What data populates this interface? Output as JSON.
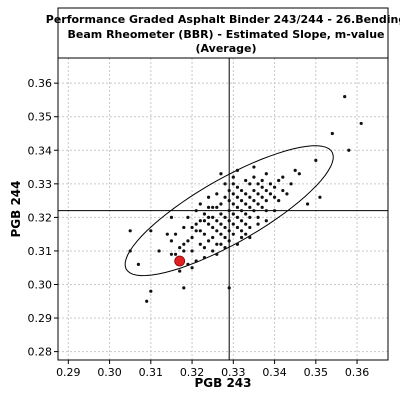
{
  "chart_data": {
    "type": "scatter",
    "title_lines": [
      "Performance Graded Asphalt Binder 243/244 - 26.Bending",
      "Beam Rheometer (BBR) - Estimated Slope, m-value",
      "(Average)"
    ],
    "xlabel": "PGB 243",
    "ylabel": "PGB 244",
    "xlim": [
      0.2875,
      0.3675
    ],
    "ylim": [
      0.2775,
      0.3675
    ],
    "xticks": [
      "0.29",
      "0.30",
      "0.31",
      "0.32",
      "0.33",
      "0.34",
      "0.35",
      "0.36"
    ],
    "yticks": [
      "0.28",
      "0.29",
      "0.30",
      "0.31",
      "0.32",
      "0.33",
      "0.34",
      "0.35",
      "0.36"
    ],
    "grid": true,
    "reference_lines": {
      "x": 0.329,
      "y": 0.322
    },
    "ellipse": {
      "center": [
        0.329,
        0.322
      ],
      "semi_major": 0.0305,
      "semi_minor": 0.009,
      "angle_deg": 36
    },
    "highlight_point": {
      "x": 0.317,
      "y": 0.307,
      "color": "#e02020"
    },
    "colors": {
      "points": "#111111",
      "highlight": "#e02020",
      "grid": "#c8c8c8",
      "lines": "#000000"
    },
    "points": [
      [
        0.305,
        0.316
      ],
      [
        0.305,
        0.31
      ],
      [
        0.307,
        0.306
      ],
      [
        0.309,
        0.295
      ],
      [
        0.31,
        0.298
      ],
      [
        0.31,
        0.316
      ],
      [
        0.312,
        0.31
      ],
      [
        0.314,
        0.315
      ],
      [
        0.315,
        0.313
      ],
      [
        0.315,
        0.32
      ],
      [
        0.316,
        0.309
      ],
      [
        0.317,
        0.304
      ],
      [
        0.318,
        0.317
      ],
      [
        0.318,
        0.312
      ],
      [
        0.319,
        0.306
      ],
      [
        0.319,
        0.32
      ],
      [
        0.32,
        0.314
      ],
      [
        0.32,
        0.31
      ],
      [
        0.321,
        0.318
      ],
      [
        0.321,
        0.307
      ],
      [
        0.321,
        0.322
      ],
      [
        0.322,
        0.312
      ],
      [
        0.322,
        0.316
      ],
      [
        0.323,
        0.319
      ],
      [
        0.323,
        0.311
      ],
      [
        0.323,
        0.315
      ],
      [
        0.324,
        0.313
      ],
      [
        0.324,
        0.318
      ],
      [
        0.324,
        0.323
      ],
      [
        0.325,
        0.31
      ],
      [
        0.325,
        0.317
      ],
      [
        0.325,
        0.32
      ],
      [
        0.325,
        0.314
      ],
      [
        0.326,
        0.312
      ],
      [
        0.326,
        0.319
      ],
      [
        0.326,
        0.316
      ],
      [
        0.326,
        0.323
      ],
      [
        0.327,
        0.315
      ],
      [
        0.327,
        0.318
      ],
      [
        0.327,
        0.321
      ],
      [
        0.327,
        0.324
      ],
      [
        0.327,
        0.312
      ],
      [
        0.328,
        0.317
      ],
      [
        0.328,
        0.32
      ],
      [
        0.328,
        0.314
      ],
      [
        0.328,
        0.326
      ],
      [
        0.328,
        0.311
      ],
      [
        0.329,
        0.319
      ],
      [
        0.329,
        0.322
      ],
      [
        0.329,
        0.316
      ],
      [
        0.329,
        0.325
      ],
      [
        0.329,
        0.328
      ],
      [
        0.33,
        0.318
      ],
      [
        0.33,
        0.321
      ],
      [
        0.33,
        0.324
      ],
      [
        0.33,
        0.315
      ],
      [
        0.33,
        0.33
      ],
      [
        0.331,
        0.32
      ],
      [
        0.331,
        0.323
      ],
      [
        0.331,
        0.326
      ],
      [
        0.331,
        0.317
      ],
      [
        0.331,
        0.334
      ],
      [
        0.332,
        0.319
      ],
      [
        0.332,
        0.322
      ],
      [
        0.332,
        0.325
      ],
      [
        0.332,
        0.328
      ],
      [
        0.332,
        0.314
      ],
      [
        0.333,
        0.321
      ],
      [
        0.333,
        0.324
      ],
      [
        0.333,
        0.327
      ],
      [
        0.333,
        0.331
      ],
      [
        0.333,
        0.318
      ],
      [
        0.334,
        0.323
      ],
      [
        0.334,
        0.326
      ],
      [
        0.334,
        0.32
      ],
      [
        0.334,
        0.33
      ],
      [
        0.335,
        0.325
      ],
      [
        0.335,
        0.328
      ],
      [
        0.335,
        0.322
      ],
      [
        0.335,
        0.332
      ],
      [
        0.336,
        0.327
      ],
      [
        0.336,
        0.324
      ],
      [
        0.336,
        0.33
      ],
      [
        0.337,
        0.326
      ],
      [
        0.337,
        0.329
      ],
      [
        0.337,
        0.323
      ],
      [
        0.338,
        0.328
      ],
      [
        0.338,
        0.325
      ],
      [
        0.338,
        0.333
      ],
      [
        0.339,
        0.327
      ],
      [
        0.339,
        0.33
      ],
      [
        0.34,
        0.326
      ],
      [
        0.34,
        0.329
      ],
      [
        0.341,
        0.331
      ],
      [
        0.342,
        0.328
      ],
      [
        0.342,
        0.332
      ],
      [
        0.344,
        0.33
      ],
      [
        0.345,
        0.334
      ],
      [
        0.346,
        0.333
      ],
      [
        0.348,
        0.324
      ],
      [
        0.35,
        0.337
      ],
      [
        0.351,
        0.326
      ],
      [
        0.354,
        0.345
      ],
      [
        0.357,
        0.356
      ],
      [
        0.358,
        0.34
      ],
      [
        0.361,
        0.348
      ],
      [
        0.329,
        0.299
      ],
      [
        0.318,
        0.299
      ],
      [
        0.315,
        0.309
      ],
      [
        0.32,
        0.305
      ],
      [
        0.323,
        0.308
      ],
      [
        0.326,
        0.309
      ],
      [
        0.331,
        0.312
      ],
      [
        0.334,
        0.317
      ],
      [
        0.336,
        0.32
      ],
      [
        0.338,
        0.322
      ],
      [
        0.326,
        0.327
      ],
      [
        0.324,
        0.326
      ],
      [
        0.322,
        0.324
      ],
      [
        0.33,
        0.332
      ],
      [
        0.335,
        0.335
      ],
      [
        0.337,
        0.331
      ],
      [
        0.328,
        0.33
      ],
      [
        0.327,
        0.333
      ],
      [
        0.331,
        0.329
      ],
      [
        0.333,
        0.315
      ],
      [
        0.324,
        0.32
      ],
      [
        0.325,
        0.323
      ],
      [
        0.323,
        0.321
      ],
      [
        0.322,
        0.319
      ],
      [
        0.321,
        0.316
      ],
      [
        0.32,
        0.317
      ],
      [
        0.319,
        0.313
      ],
      [
        0.318,
        0.31
      ],
      [
        0.317,
        0.311
      ],
      [
        0.316,
        0.315
      ],
      [
        0.329,
        0.313
      ],
      [
        0.33,
        0.327
      ],
      [
        0.332,
        0.316
      ],
      [
        0.334,
        0.314
      ],
      [
        0.336,
        0.318
      ],
      [
        0.338,
        0.319
      ],
      [
        0.34,
        0.322
      ],
      [
        0.341,
        0.325
      ],
      [
        0.343,
        0.327
      ]
    ]
  }
}
